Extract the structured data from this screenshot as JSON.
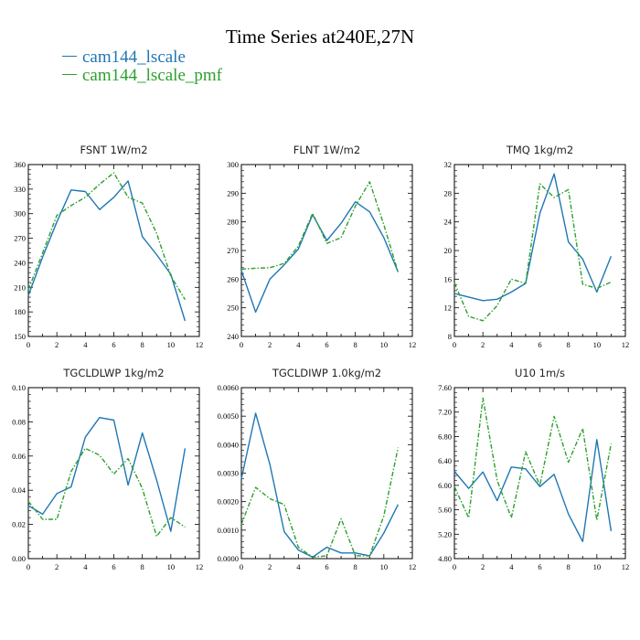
{
  "title": "Time Series at240E,27N",
  "legend": [
    {
      "name": "cam144_lscale",
      "color": "#1f77b4"
    },
    {
      "name": "cam144_lscale_pmf",
      "color": "#2ca02c"
    }
  ],
  "chart_data": [
    {
      "type": "line",
      "title": "FSNT   1W/m2",
      "xlim": [
        0,
        12
      ],
      "ylim": [
        150,
        360
      ],
      "xticks": [
        "0",
        "2",
        "4",
        "6",
        "8",
        "10",
        "12"
      ],
      "yticks": [
        "150",
        "180",
        "210",
        "240",
        "270",
        "300",
        "330",
        "360"
      ],
      "x": [
        0,
        1,
        2,
        3,
        4,
        5,
        6,
        7,
        8,
        9,
        10,
        11
      ],
      "series": [
        {
          "name": "cam144_lscale",
          "values": [
            200,
            247,
            290,
            329,
            327,
            305,
            320,
            340,
            272,
            250,
            226,
            169
          ]
        },
        {
          "name": "cam144_lscale_pmf",
          "values": [
            207,
            252,
            298,
            310,
            320,
            336,
            350,
            320,
            313,
            276,
            224,
            195
          ]
        }
      ]
    },
    {
      "type": "line",
      "title": "FLNT   1W/m2",
      "xlim": [
        0,
        12
      ],
      "ylim": [
        240,
        300
      ],
      "xticks": [
        "0",
        "2",
        "4",
        "6",
        "8",
        "10",
        "12"
      ],
      "yticks": [
        "240",
        "250",
        "260",
        "270",
        "280",
        "290",
        "300"
      ],
      "x": [
        0,
        1,
        2,
        3,
        4,
        5,
        6,
        7,
        8,
        9,
        10,
        11
      ],
      "series": [
        {
          "name": "cam144_lscale",
          "values": [
            263,
            248.5,
            260,
            265,
            270.5,
            282.5,
            273.5,
            279.5,
            287,
            283.5,
            274.5,
            262.5
          ]
        },
        {
          "name": "cam144_lscale_pmf",
          "values": [
            263.5,
            263.8,
            264,
            265.5,
            271.5,
            283,
            272.5,
            274.5,
            285.5,
            294,
            279,
            262.5
          ]
        }
      ]
    },
    {
      "type": "line",
      "title": "TMQ   1kg/m2",
      "xlim": [
        0,
        12
      ],
      "ylim": [
        8,
        32
      ],
      "xticks": [
        "0",
        "2",
        "4",
        "6",
        "8",
        "10",
        "12"
      ],
      "yticks": [
        "8",
        "12",
        "16",
        "20",
        "24",
        "28",
        "32"
      ],
      "x": [
        0,
        1,
        2,
        3,
        4,
        5,
        6,
        7,
        8,
        9,
        10,
        11
      ],
      "series": [
        {
          "name": "cam144_lscale",
          "values": [
            14,
            13.5,
            13,
            13.2,
            14.2,
            15.4,
            25.2,
            30.7,
            21.2,
            18.8,
            14.2,
            19.2
          ]
        },
        {
          "name": "cam144_lscale_pmf",
          "values": [
            15.5,
            10.8,
            10.2,
            12.3,
            16,
            15.4,
            29.3,
            27.4,
            28.5,
            15.3,
            14.7,
            15.6
          ]
        }
      ]
    },
    {
      "type": "line",
      "title": "TGCLDLWP   1kg/m2",
      "xlim": [
        0,
        12
      ],
      "ylim": [
        0,
        0.1
      ],
      "xticks": [
        "0",
        "2",
        "4",
        "6",
        "8",
        "10",
        "12"
      ],
      "yticks": [
        "0.00",
        "0.02",
        "0.04",
        "0.06",
        "0.08",
        "0.10"
      ],
      "x": [
        0,
        1,
        2,
        3,
        4,
        5,
        6,
        7,
        8,
        9,
        10,
        11
      ],
      "series": [
        {
          "name": "cam144_lscale",
          "values": [
            0.031,
            0.026,
            0.038,
            0.042,
            0.071,
            0.0825,
            0.081,
            0.043,
            0.0735,
            0.046,
            0.016,
            0.0645
          ]
        },
        {
          "name": "cam144_lscale_pmf",
          "values": [
            0.0335,
            0.023,
            0.023,
            0.051,
            0.0645,
            0.0605,
            0.0495,
            0.0585,
            0.041,
            0.013,
            0.024,
            0.0185
          ]
        }
      ]
    },
    {
      "type": "line",
      "title": "TGCLDIWP   1.0kg/m2",
      "xlim": [
        0,
        12
      ],
      "ylim": [
        0,
        0.006
      ],
      "xticks": [
        "0",
        "2",
        "4",
        "6",
        "8",
        "10",
        "12"
      ],
      "yticks": [
        "0.0000",
        "0.0010",
        "0.0020",
        "0.0030",
        "0.0040",
        "0.0050",
        "0.0060"
      ],
      "x": [
        0,
        1,
        2,
        3,
        4,
        5,
        6,
        7,
        8,
        9,
        10,
        11
      ],
      "series": [
        {
          "name": "cam144_lscale",
          "values": [
            0.0028,
            0.0051,
            0.0033,
            0.00095,
            0.0003,
            5e-05,
            0.0004,
            0.0002,
            0.0002,
            0.0001,
            0.0009,
            0.0019
          ]
        },
        {
          "name": "cam144_lscale_pmf",
          "values": [
            0.0012,
            0.0025,
            0.0021,
            0.0019,
            0.0004,
            5e-05,
            0.0001,
            0.0014,
            0.0001,
            0.0001,
            0.0015,
            0.0039
          ]
        }
      ]
    },
    {
      "type": "line",
      "title": "U10   1m/s",
      "xlim": [
        0,
        12
      ],
      "ylim": [
        4.8,
        7.6
      ],
      "xticks": [
        "0",
        "2",
        "4",
        "6",
        "8",
        "10",
        "12"
      ],
      "yticks": [
        "4.80",
        "5.20",
        "5.60",
        "6.00",
        "6.40",
        "6.80",
        "7.20",
        "7.60"
      ],
      "x": [
        0,
        1,
        2,
        3,
        4,
        5,
        6,
        7,
        8,
        9,
        10,
        11
      ],
      "series": [
        {
          "name": "cam144_lscale",
          "values": [
            6.23,
            5.95,
            6.22,
            5.75,
            6.3,
            6.27,
            5.98,
            6.18,
            5.53,
            5.08,
            6.75,
            5.25
          ]
        },
        {
          "name": "cam144_lscale_pmf",
          "values": [
            5.98,
            5.47,
            7.43,
            6.08,
            5.47,
            6.55,
            6.0,
            7.13,
            6.38,
            6.93,
            5.43,
            6.68
          ]
        }
      ]
    }
  ]
}
